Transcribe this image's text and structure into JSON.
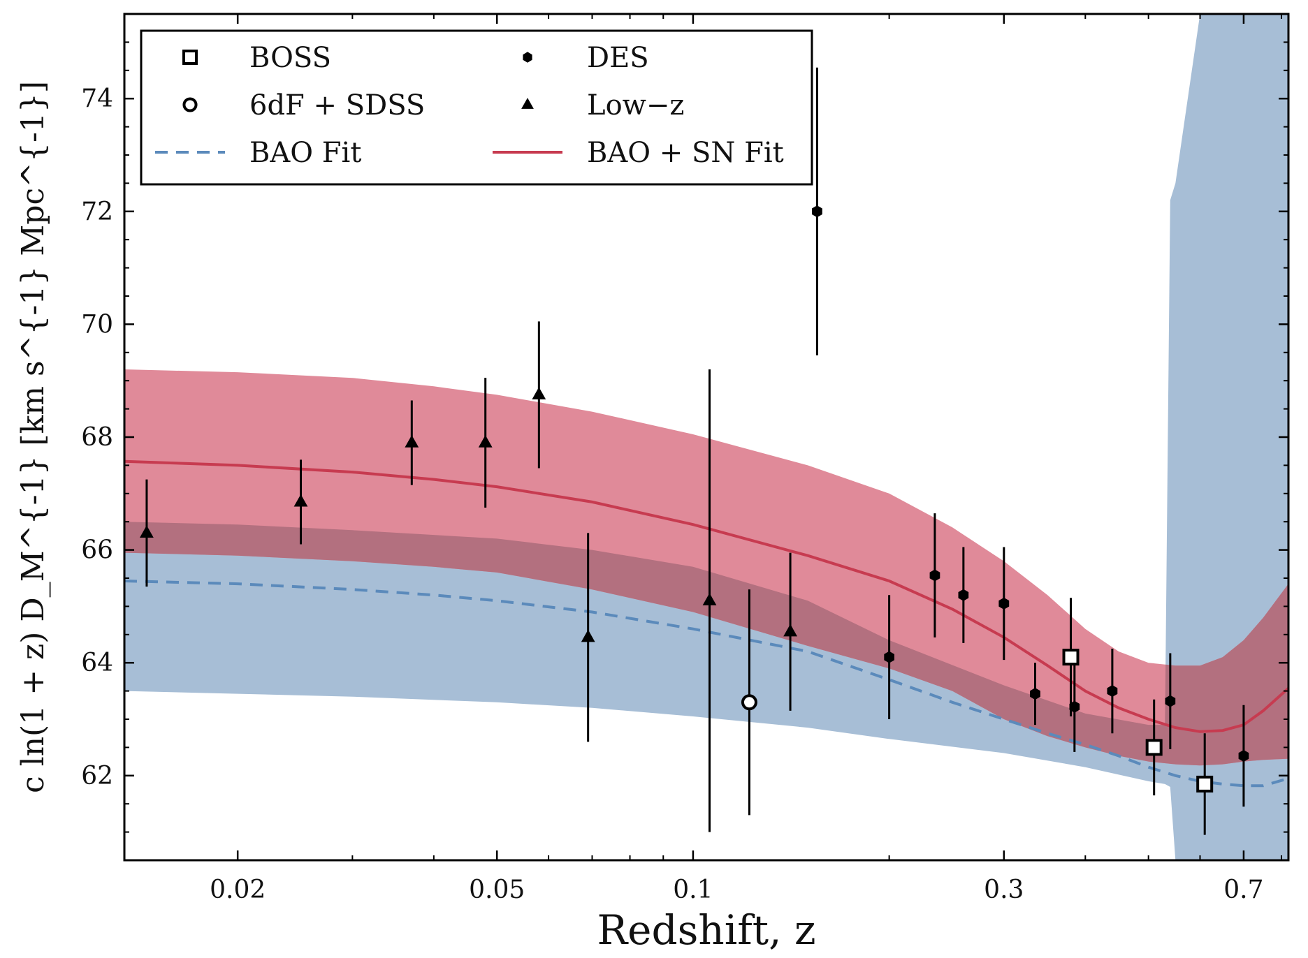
{
  "chart_data": {
    "type": "scatter",
    "xlabel": "Redshift, z",
    "ylabel": "c ln(1 + z) D_M^{-1} [km s^{-1} Mpc^{-1}]",
    "xscale": "log",
    "xlim": [
      0.0134,
      0.82
    ],
    "ylim": [
      60.5,
      75.5
    ],
    "xticks": [
      0.02,
      0.05,
      0.1,
      0.3,
      0.7
    ],
    "xtick_labels": [
      "0.02",
      "0.05",
      "0.1",
      "0.3",
      "0.7"
    ],
    "yticks": [
      62,
      64,
      66,
      68,
      70,
      72,
      74
    ],
    "ytick_labels": [
      "62",
      "64",
      "66",
      "68",
      "70",
      "72",
      "74"
    ],
    "grid": false,
    "legend_position": "top-left",
    "legend": [
      {
        "label": "BOSS",
        "marker": "square-open"
      },
      {
        "label": "DES",
        "marker": "hexagon"
      },
      {
        "label": "6dF + SDSS",
        "marker": "circle-open"
      },
      {
        "label": "Low−z",
        "marker": "triangle"
      },
      {
        "label": "BAO Fit",
        "marker": "dashed-line"
      },
      {
        "label": "BAO + SN Fit",
        "marker": "solid-line"
      }
    ],
    "colors": {
      "bao_band": "#a7bed6",
      "bao_line": "#5b8abb",
      "sn_band": "#e08a99",
      "overlap_band": "#b3707f",
      "sn_line": "#c73b50",
      "points": "#000000"
    },
    "series": [
      {
        "name": "BOSS",
        "marker": "square-open",
        "points": [
          {
            "x": 0.38,
            "y": 64.1,
            "err": 1.05
          },
          {
            "x": 0.51,
            "y": 62.5,
            "err": 0.85
          },
          {
            "x": 0.61,
            "y": 61.85,
            "err": 0.9
          }
        ]
      },
      {
        "name": "6dF + SDSS",
        "marker": "circle-open",
        "points": [
          {
            "x": 0.122,
            "y": 63.3,
            "err": 2.0
          }
        ]
      },
      {
        "name": "DES",
        "marker": "hexagon",
        "points": [
          {
            "x": 0.155,
            "y": 72.0,
            "err": 2.55
          },
          {
            "x": 0.2,
            "y": 64.1,
            "err": 1.1
          },
          {
            "x": 0.235,
            "y": 65.55,
            "err": 1.1
          },
          {
            "x": 0.26,
            "y": 65.2,
            "err": 0.85
          },
          {
            "x": 0.3,
            "y": 65.05,
            "err": 1.0
          },
          {
            "x": 0.335,
            "y": 63.45,
            "err": 0.55
          },
          {
            "x": 0.385,
            "y": 63.22,
            "err": 0.8
          },
          {
            "x": 0.44,
            "y": 63.5,
            "err": 0.75
          },
          {
            "x": 0.54,
            "y": 63.32,
            "err": 0.85
          },
          {
            "x": 0.7,
            "y": 62.35,
            "err": 0.9
          }
        ]
      },
      {
        "name": "Low−z",
        "marker": "triangle",
        "points": [
          {
            "x": 0.0145,
            "y": 66.3,
            "err": 0.95
          },
          {
            "x": 0.025,
            "y": 66.85,
            "err": 0.75
          },
          {
            "x": 0.037,
            "y": 67.9,
            "err": 0.75
          },
          {
            "x": 0.048,
            "y": 67.9,
            "err": 1.15
          },
          {
            "x": 0.058,
            "y": 68.75,
            "err": 1.3
          },
          {
            "x": 0.069,
            "y": 64.45,
            "err": 1.85
          },
          {
            "x": 0.106,
            "y": 65.1,
            "err": 4.1
          },
          {
            "x": 0.141,
            "y": 64.55,
            "err": 1.4
          }
        ]
      }
    ],
    "bao_fit": {
      "name": "BAO Fit",
      "x": [
        0.0134,
        0.02,
        0.03,
        0.04,
        0.05,
        0.07,
        0.1,
        0.15,
        0.2,
        0.25,
        0.3,
        0.35,
        0.4,
        0.45,
        0.5,
        0.55,
        0.6,
        0.65,
        0.7,
        0.75,
        0.82
      ],
      "y": [
        65.45,
        65.4,
        65.3,
        65.2,
        65.1,
        64.9,
        64.6,
        64.2,
        63.7,
        63.3,
        63.0,
        62.75,
        62.55,
        62.35,
        62.15,
        62.0,
        61.9,
        61.85,
        61.82,
        61.82,
        61.95
      ]
    },
    "bao_band": {
      "x": [
        0.0134,
        0.02,
        0.03,
        0.05,
        0.07,
        0.1,
        0.15,
        0.2,
        0.3,
        0.4,
        0.5,
        0.53,
        0.54,
        0.55,
        0.6,
        0.65,
        0.7,
        0.75,
        0.82
      ],
      "lower": [
        63.5,
        63.45,
        63.4,
        63.3,
        63.2,
        63.05,
        62.85,
        62.65,
        62.4,
        62.15,
        61.9,
        61.85,
        61.8,
        60.5,
        60.5,
        60.5,
        60.5,
        60.5,
        60.5
      ],
      "upper": [
        66.5,
        66.45,
        66.35,
        66.2,
        66.0,
        65.7,
        65.1,
        64.4,
        63.6,
        63.1,
        62.9,
        62.9,
        72.2,
        72.5,
        75.5,
        75.5,
        75.5,
        75.5,
        75.5
      ]
    },
    "bao_sn_fit": {
      "name": "BAO + SN Fit",
      "x": [
        0.0134,
        0.02,
        0.03,
        0.04,
        0.05,
        0.07,
        0.1,
        0.15,
        0.2,
        0.25,
        0.3,
        0.35,
        0.4,
        0.45,
        0.5,
        0.55,
        0.6,
        0.65,
        0.7,
        0.75,
        0.82
      ],
      "y": [
        67.57,
        67.5,
        67.38,
        67.25,
        67.12,
        66.85,
        66.45,
        65.9,
        65.45,
        64.95,
        64.45,
        63.95,
        63.5,
        63.2,
        63.0,
        62.85,
        62.78,
        62.8,
        62.9,
        63.15,
        63.55
      ],
      "band_lower": [
        65.95,
        65.9,
        65.8,
        65.7,
        65.6,
        65.3,
        64.9,
        64.3,
        63.9,
        63.5,
        63.0,
        62.7,
        62.5,
        62.35,
        62.25,
        62.2,
        62.18,
        62.2,
        62.25,
        62.28,
        62.3
      ],
      "band_upper": [
        69.2,
        69.15,
        69.05,
        68.9,
        68.75,
        68.45,
        68.05,
        67.5,
        67.0,
        66.4,
        65.8,
        65.2,
        64.6,
        64.2,
        64.0,
        63.95,
        63.95,
        64.1,
        64.4,
        64.8,
        65.4
      ]
    }
  }
}
